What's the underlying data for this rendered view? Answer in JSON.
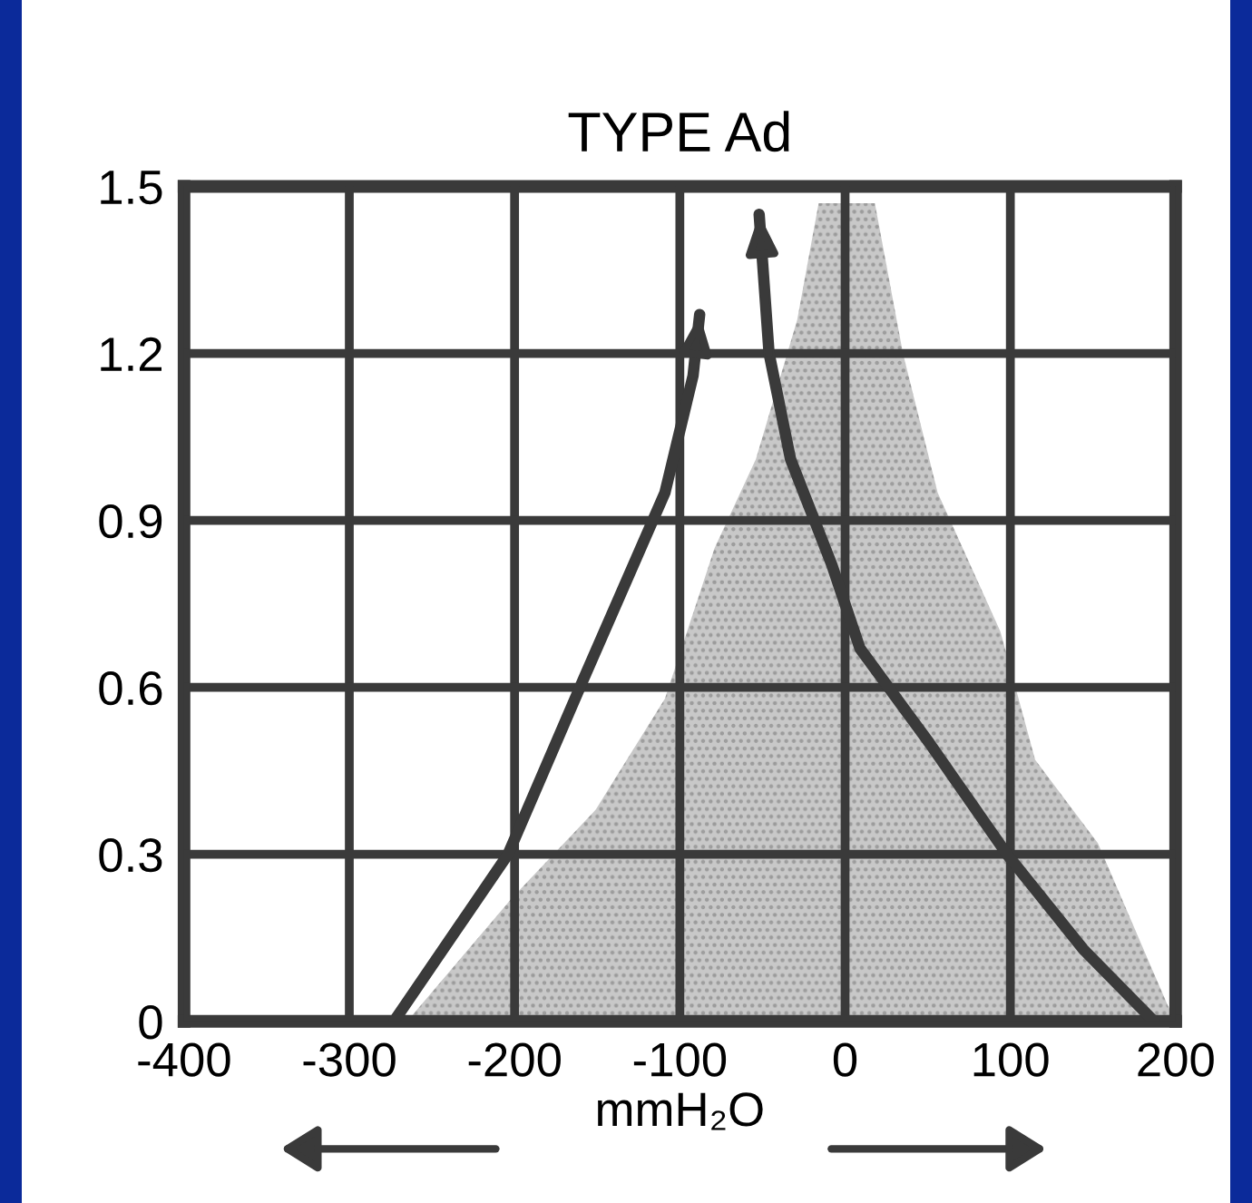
{
  "chart_data": {
    "type": "line",
    "title": "TYPE Ad",
    "xlabel": "mmH₂O",
    "xlim": [
      -400,
      200
    ],
    "xticks": [
      -400,
      -300,
      -200,
      -100,
      0,
      100,
      200
    ],
    "ylim": [
      0,
      1.5
    ],
    "yticks": [
      0,
      0.3,
      0.6,
      0.9,
      1.2,
      1.5
    ],
    "grid": true,
    "marker": "none",
    "line_style": "solid",
    "series": [
      {
        "type": "area",
        "color": "#c8c8c8",
        "x": [
          -265,
          -202,
          -151,
          -109,
          -79,
          -54,
          -29,
          -16,
          18,
          35,
          56,
          94,
          115,
          153,
          195,
          200
        ],
        "values": [
          0,
          0.22,
          0.38,
          0.58,
          0.85,
          1.01,
          1.26,
          1.47,
          1.47,
          1.2,
          0.95,
          0.7,
          0.47,
          0.32,
          0.03,
          0
        ]
      },
      {
        "color": "#3a3a3a",
        "x": [
          -273,
          -204,
          -159,
          -109,
          -92,
          -88
        ],
        "values": [
          0,
          0.3,
          0.61,
          0.95,
          1.16,
          1.27
        ]
      },
      {
        "color": "#3a3a3a",
        "x": [
          187,
          144,
          98,
          51,
          9,
          -8,
          -33,
          -46,
          -52
        ],
        "values": [
          0,
          0.13,
          0.3,
          0.5,
          0.67,
          0.82,
          1.01,
          1.2,
          1.45
        ]
      }
    ]
  }
}
